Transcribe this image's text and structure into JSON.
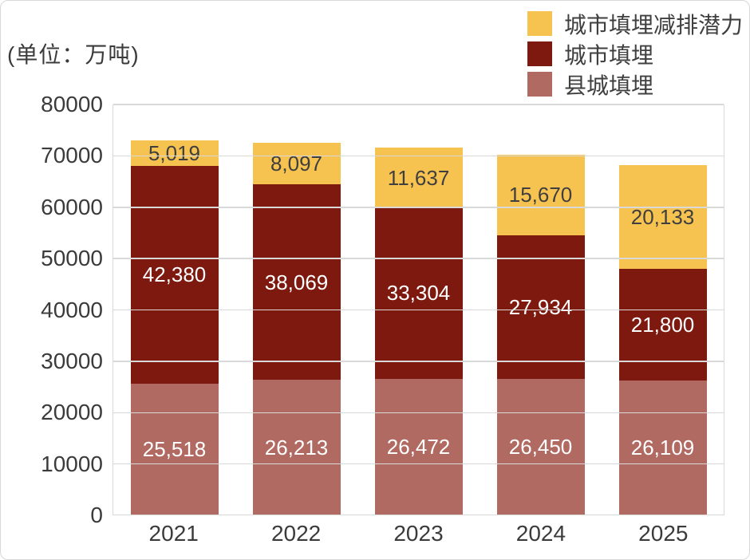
{
  "unit_label": "(单位：万吨)",
  "colors": {
    "gold": "#F7C350",
    "dark_red": "#7E190F",
    "rose": "#B16A62",
    "grid": "#D9D9D9",
    "axis_text": "#3B3B3B",
    "frame_border": "#D8D8D8",
    "label_on_gold": "#3F3F3F",
    "label_on_red": "#FFFFFF"
  },
  "chart_data": {
    "type": "bar",
    "stacked": true,
    "title": "",
    "unit": "万吨",
    "categories": [
      "2021",
      "2022",
      "2023",
      "2024",
      "2025"
    ],
    "series": [
      {
        "name": "城市填埋减排潜力",
        "color": "#F7C350",
        "label_color": "#3F3F3F",
        "values": [
          5019,
          8097,
          11637,
          15670,
          20133
        ],
        "labels": [
          "5,019",
          "8,097",
          "11,637",
          "15,670",
          "20,133"
        ]
      },
      {
        "name": "城市填埋",
        "color": "#7E190F",
        "label_color": "#FFFFFF",
        "values": [
          42380,
          38069,
          33304,
          27934,
          21800
        ],
        "labels": [
          "42,380",
          "38,069",
          "33,304",
          "27,934",
          "21,800"
        ]
      },
      {
        "name": "县城填埋",
        "color": "#B16A62",
        "label_color": "#FFFFFF",
        "values": [
          25518,
          26213,
          26472,
          26450,
          26109
        ],
        "labels": [
          "25,518",
          "26,213",
          "26,472",
          "26,450",
          "26,109"
        ]
      }
    ],
    "ylim": [
      0,
      80000
    ],
    "y_ticks": [
      0,
      10000,
      20000,
      30000,
      40000,
      50000,
      60000,
      70000,
      80000
    ],
    "y_tick_labels": [
      "0",
      "10000",
      "20000",
      "30000",
      "40000",
      "50000",
      "60000",
      "70000",
      "80000"
    ],
    "grid": true,
    "legend_position": "top-right"
  }
}
